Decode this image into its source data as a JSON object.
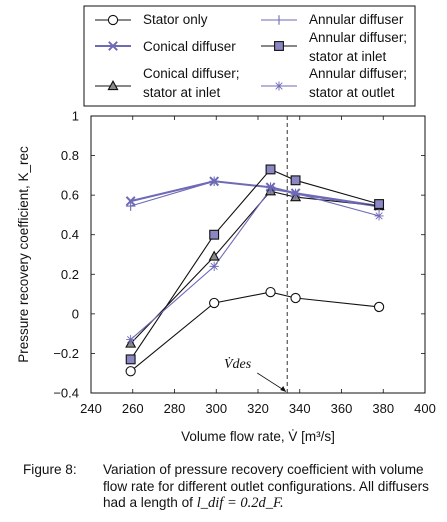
{
  "colors": {
    "black": "#111111",
    "purple": "#6e6ab7",
    "square_fill": "#8a87c2",
    "dashed": "#333333"
  },
  "chart_data": {
    "type": "line",
    "xlabel": "Volume flow rate, V̇ [m³/s]",
    "ylabel": "Pressure recovery coefficient, K_rec",
    "xlim": [
      240,
      400
    ],
    "ylim": [
      -0.4,
      1
    ],
    "xticks": [
      240,
      260,
      280,
      300,
      320,
      340,
      360,
      380,
      400
    ],
    "yticks": [
      -0.4,
      -0.2,
      0,
      0.2,
      0.4,
      0.6,
      0.8,
      1
    ],
    "grid": false,
    "legend_position": "top",
    "annotation": {
      "label": "V̇des",
      "x": 334
    },
    "series": [
      {
        "name": "Stator only",
        "color": "#111111",
        "marker": "circle",
        "x": [
          259,
          299,
          326,
          338,
          378
        ],
        "y": [
          -0.29,
          0.055,
          0.11,
          0.08,
          0.035
        ]
      },
      {
        "name": "Conical diffuser",
        "color": "#6e6ab7",
        "marker": "x",
        "x": [
          259,
          299,
          326,
          338,
          378
        ],
        "y": [
          0.57,
          0.67,
          0.64,
          0.61,
          0.545
        ]
      },
      {
        "name": "Conical diffuser; stator at inlet",
        "color": "#111111",
        "marker": "triangle",
        "x": [
          259,
          299,
          326,
          338,
          378
        ],
        "y": [
          -0.15,
          0.29,
          0.62,
          0.59,
          0.545
        ]
      },
      {
        "name": "Annular diffuser",
        "color": "#6e6ab7",
        "marker": "plus",
        "x": [
          259,
          299,
          326,
          338,
          378
        ],
        "y": [
          0.545,
          0.67,
          0.64,
          0.605,
          0.54
        ]
      },
      {
        "name": "Annular diffuser; stator at inlet",
        "color": "#111111",
        "marker": "square",
        "x": [
          259,
          299,
          326,
          338,
          378
        ],
        "y": [
          -0.23,
          0.4,
          0.73,
          0.675,
          0.555
        ]
      },
      {
        "name": "Annular diffuser; stator at outlet",
        "color": "#6e6ab7",
        "marker": "star",
        "x": [
          259,
          299,
          326,
          338,
          378
        ],
        "y": [
          -0.13,
          0.24,
          0.63,
          0.61,
          0.495
        ]
      }
    ]
  },
  "caption": {
    "label": "Figure 8:",
    "text": "Variation of pressure recovery coefficient with volume flow rate for different outlet configurations. All diffusers had a length of",
    "math": "l_dif = 0.2d_F."
  }
}
